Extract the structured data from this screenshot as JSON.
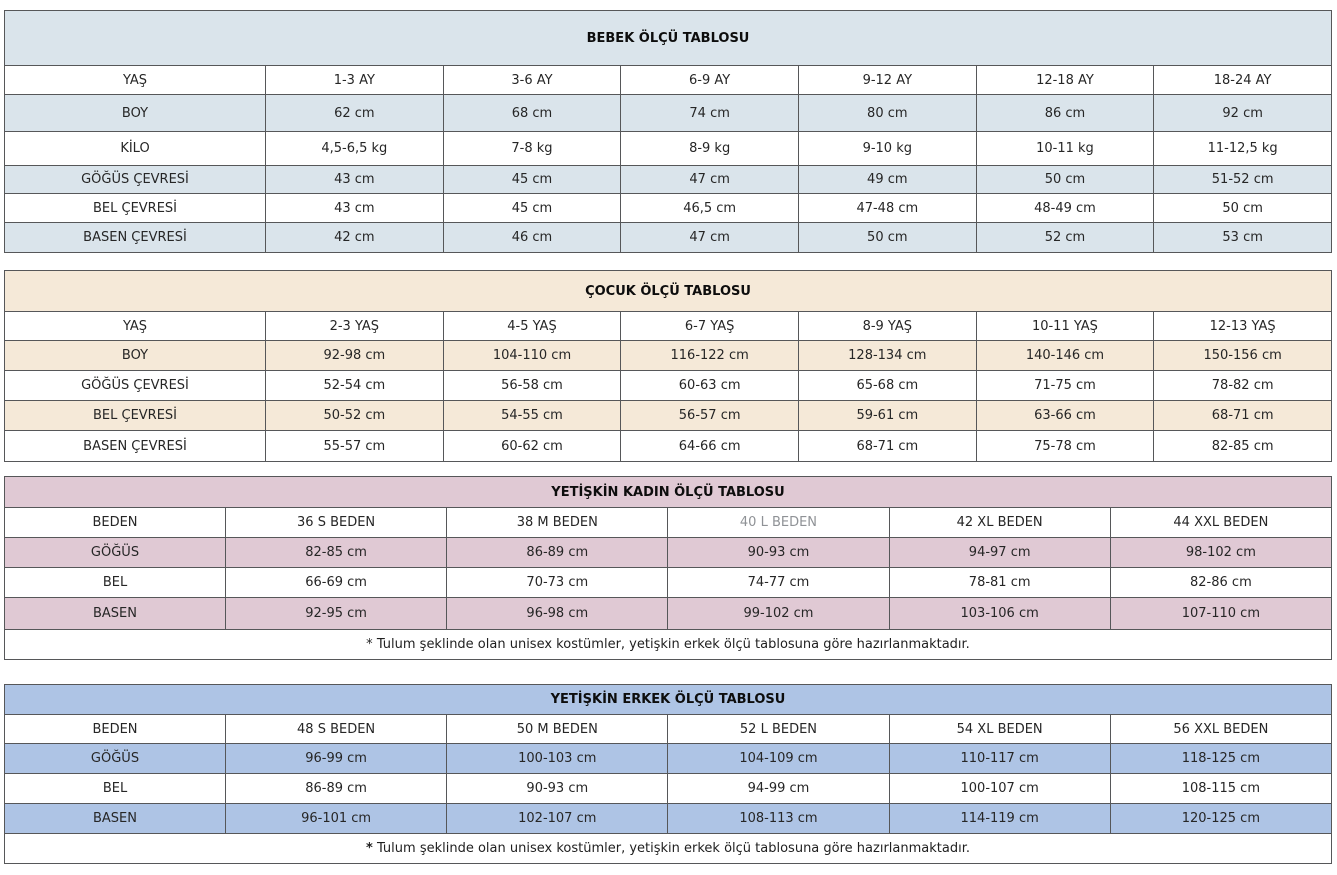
{
  "page_background": "#ffffff",
  "tables": [
    {
      "name": "bebek",
      "title": "BEBEK ÖLÇÜ TABLOSU",
      "band_color": "#dae4eb",
      "header_row": [
        "YAŞ",
        "1-3 AY",
        "3-6 AY",
        "6-9 AY",
        "9-12 AY",
        "12-18 AY",
        "18-24 AY"
      ],
      "rows": [
        {
          "label": "BOY",
          "shaded": true,
          "values": [
            "62 cm",
            "68 cm",
            "74 cm",
            "80 cm",
            "86 cm",
            "92 cm"
          ]
        },
        {
          "label": "KİLO",
          "shaded": false,
          "values": [
            "4,5-6,5 kg",
            "7-8 kg",
            "8-9 kg",
            "9-10 kg",
            "10-11 kg",
            "11-12,5 kg"
          ]
        },
        {
          "label": "GÖĞÜS ÇEVRESİ",
          "shaded": true,
          "values": [
            "43 cm",
            "45 cm",
            "47 cm",
            "49 cm",
            "50 cm",
            "51-52 cm"
          ]
        },
        {
          "label": "BEL ÇEVRESİ",
          "shaded": false,
          "values": [
            "43 cm",
            "45 cm",
            "46,5 cm",
            "47-48 cm",
            "48-49 cm",
            "50 cm"
          ]
        },
        {
          "label": "BASEN ÇEVRESİ",
          "shaded": true,
          "values": [
            "42 cm",
            "46 cm",
            "47 cm",
            "50 cm",
            "52 cm",
            "53 cm"
          ]
        }
      ]
    },
    {
      "name": "cocuk",
      "title": "ÇOCUK ÖLÇÜ TABLOSU",
      "band_color": "#f5e9d8",
      "header_row": [
        "YAŞ",
        "2-3 YAŞ",
        "4-5 YAŞ",
        "6-7 YAŞ",
        "8-9 YAŞ",
        "10-11 YAŞ",
        "12-13 YAŞ"
      ],
      "rows": [
        {
          "label": "BOY",
          "shaded": true,
          "values": [
            "92-98 cm",
            "104-110 cm",
            "116-122 cm",
            "128-134 cm",
            "140-146 cm",
            "150-156 cm"
          ]
        },
        {
          "label": "GÖĞÜS ÇEVRESİ",
          "shaded": false,
          "values": [
            "52-54 cm",
            "56-58 cm",
            "60-63 cm",
            "65-68 cm",
            "71-75 cm",
            "78-82 cm"
          ]
        },
        {
          "label": "BEL ÇEVRESİ",
          "shaded": true,
          "values": [
            "50-52 cm",
            "54-55 cm",
            "56-57 cm",
            "59-61 cm",
            "63-66 cm",
            "68-71 cm"
          ]
        },
        {
          "label": "BASEN ÇEVRESİ",
          "shaded": false,
          "values": [
            "55-57 cm",
            "60-62 cm",
            "64-66 cm",
            "68-71 cm",
            "75-78 cm",
            "82-85 cm"
          ]
        }
      ]
    },
    {
      "name": "yetiskin-kadin",
      "title": "YETİŞKİN KADIN ÖLÇÜ TABLOSU",
      "band_color": "#e0c9d4",
      "muted_header_index": 3,
      "header_row": [
        "BEDEN",
        "36 S BEDEN",
        "38 M BEDEN",
        "40 L BEDEN",
        "42 XL BEDEN",
        "44 XXL BEDEN"
      ],
      "rows": [
        {
          "label": "GÖĞÜS",
          "shaded": true,
          "values": [
            "82-85 cm",
            "86-89 cm",
            "90-93 cm",
            "94-97 cm",
            "98-102 cm"
          ]
        },
        {
          "label": "BEL",
          "shaded": false,
          "values": [
            "66-69 cm",
            "70-73 cm",
            "74-77 cm",
            "78-81 cm",
            "82-86 cm"
          ]
        },
        {
          "label": "BASEN",
          "shaded": true,
          "values": [
            "92-95 cm",
            "96-98 cm",
            "99-102 cm",
            "103-106 cm",
            "107-110 cm"
          ]
        }
      ],
      "footnote_marker": "*",
      "footnote_text": "Tulum şeklinde olan unisex kostümler, yetişkin erkek ölçü tablosuna göre hazırlanmaktadır."
    },
    {
      "name": "yetiskin-erkek",
      "title": "YETİŞKİN ERKEK ÖLÇÜ TABLOSU",
      "band_color": "#aec4e5",
      "header_row": [
        "BEDEN",
        "48 S BEDEN",
        "50 M BEDEN",
        "52 L BEDEN",
        "54 XL BEDEN",
        "56 XXL BEDEN"
      ],
      "rows": [
        {
          "label": "GÖĞÜS",
          "shaded": true,
          "values": [
            "96-99 cm",
            "100-103 cm",
            "104-109 cm",
            "110-117 cm",
            "118-125 cm"
          ]
        },
        {
          "label": "BEL",
          "shaded": false,
          "values": [
            "86-89 cm",
            "90-93 cm",
            "94-99 cm",
            "100-107 cm",
            "108-115 cm"
          ]
        },
        {
          "label": "BASEN",
          "shaded": true,
          "values": [
            "96-101 cm",
            "102-107 cm",
            "108-113 cm",
            "114-119 cm",
            "120-125 cm"
          ]
        }
      ],
      "footnote_marker": "*",
      "footnote_text": "Tulum şeklinde olan unisex kostümler, yetişkin erkek ölçü  tablosuna göre hazırlanmaktadır."
    }
  ]
}
